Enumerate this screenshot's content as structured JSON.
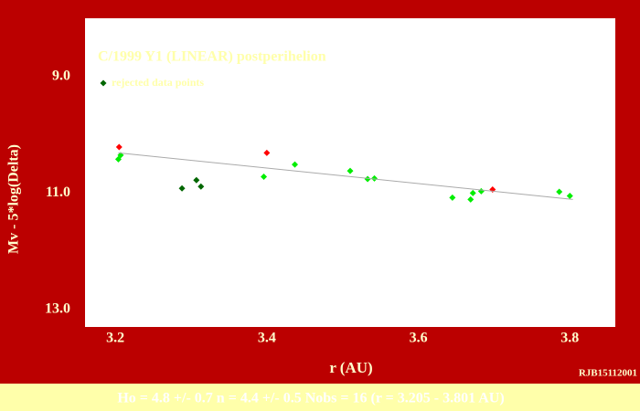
{
  "chart_data": {
    "type": "scatter",
    "title": "C/1999 Y1 (LINEAR) postperihelion",
    "x_label": "r (AU)",
    "y_label": "Mv - 5*log(Delta)",
    "credit": "RJB15112001",
    "footer": "Ho = 4.8 +/- 0.7    n = 4.4 +/- 0.5    Nobs = 16    (r = 3.205 - 3.801 AU)",
    "xlim": [
      3.16,
      3.86
    ],
    "ylim": [
      8.0,
      13.3
    ],
    "y_inverted": true,
    "xticks": [
      3.2,
      3.4,
      3.6,
      3.8
    ],
    "yticks": [
      {
        "value": 9,
        "label": "9.0"
      },
      {
        "value": 11,
        "label": "11.0"
      },
      {
        "value": 13,
        "label": "13.0"
      }
    ],
    "legend": "upper left",
    "series": [
      {
        "color": "#00ee00",
        "x": [
          3.204,
          3.207,
          3.396,
          3.437,
          3.51,
          3.533,
          3.542,
          3.645,
          3.669,
          3.672,
          3.683,
          3.786,
          3.8
        ],
        "values": [
          10.42,
          10.35,
          10.72,
          10.51,
          10.62,
          10.76,
          10.75,
          11.08,
          11.11,
          11.0,
          10.97,
          10.98,
          11.05
        ]
      },
      {
        "color": "#ff0000",
        "x": [
          3.205,
          3.4,
          3.698
        ],
        "values": [
          10.21,
          10.31,
          10.94
        ]
      },
      {
        "name": "rejected data points",
        "color": "#006600",
        "x": [
          3.288,
          3.307,
          3.313
        ],
        "values": [
          10.92,
          10.78,
          10.89
        ]
      },
      {
        "style": "line",
        "color": "#aaaaaa",
        "x": [
          3.204,
          3.804
        ],
        "values": [
          10.31,
          11.11
        ]
      }
    ]
  }
}
